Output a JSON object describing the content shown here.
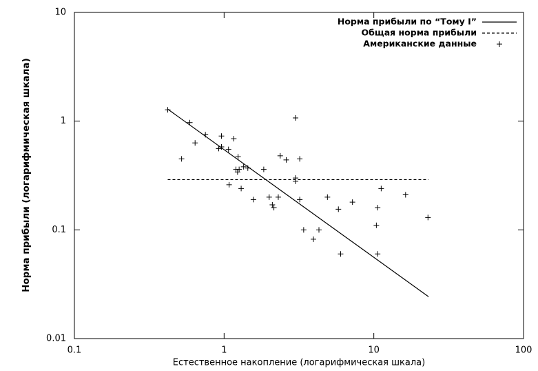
{
  "chart_data": {
    "type": "scatter",
    "xlabel": "Естественное накопление (логарифмическая шкала)",
    "ylabel": "Норма прибыли (логарифмическая шкала)",
    "xscale": "log",
    "yscale": "log",
    "xlim": [
      0.1,
      100
    ],
    "ylim": [
      0.01,
      10
    ],
    "xticks": [
      0.1,
      1,
      10,
      100
    ],
    "yticks": [
      0.01,
      0.1,
      1,
      10
    ],
    "legend": "top-right",
    "series": [
      {
        "name": "Норма прибыли по “Тому I”",
        "type": "line",
        "dash": false,
        "color": "#000000",
        "x": [
          0.42,
          23.2
        ],
        "values": [
          1.29,
          0.0243
        ]
      },
      {
        "name": "Общая норма прибыли",
        "type": "line",
        "dash": true,
        "color": "#000000",
        "x": [
          0.42,
          23.2
        ],
        "values": [
          0.29,
          0.29
        ]
      },
      {
        "name": "Американские данные",
        "type": "scatter",
        "color": "#000000",
        "x": [
          0.42,
          0.59,
          0.64,
          0.75,
          0.52,
          0.96,
          0.92,
          0.96,
          1.07,
          1.16,
          1.24,
          1.2,
          1.23,
          1.26,
          1.3,
          1.08,
          1.35,
          1.44,
          1.57,
          1.84,
          2.0,
          2.1,
          2.15,
          2.3,
          2.37,
          2.6,
          3.0,
          3.0,
          3.0,
          3.2,
          3.2,
          3.4,
          3.95,
          4.3,
          4.9,
          5.8,
          6.0,
          7.2,
          10.4,
          10.6,
          10.6,
          11.2,
          16.3,
          23
        ],
        "values": [
          1.27,
          0.97,
          0.63,
          0.75,
          0.45,
          0.73,
          0.56,
          0.58,
          0.55,
          0.69,
          0.47,
          0.36,
          0.34,
          0.36,
          0.24,
          0.26,
          0.38,
          0.37,
          0.19,
          0.36,
          0.2,
          0.17,
          0.16,
          0.2,
          0.48,
          0.44,
          0.28,
          0.3,
          1.07,
          0.45,
          0.19,
          0.1,
          0.082,
          0.1,
          0.2,
          0.155,
          0.06,
          0.18,
          0.11,
          0.16,
          0.06,
          0.24,
          0.21,
          0.13
        ]
      }
    ]
  }
}
